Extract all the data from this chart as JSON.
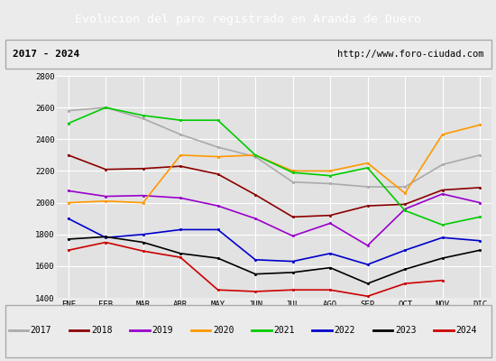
{
  "title": "Evolucion del paro registrado en Aranda de Duero",
  "subtitle_left": "2017 - 2024",
  "subtitle_right": "http://www.foro-ciudad.com",
  "months": [
    "ENE",
    "FEB",
    "MAR",
    "ABR",
    "MAY",
    "JUN",
    "JUL",
    "AGO",
    "SEP",
    "OCT",
    "NOV",
    "DIC"
  ],
  "ylim": [
    1400,
    2800
  ],
  "yticks": [
    1400,
    1600,
    1800,
    2000,
    2200,
    2400,
    2600,
    2800
  ],
  "series": {
    "2017": {
      "color": "#aaaaaa",
      "data": [
        2580,
        2600,
        2530,
        2430,
        2350,
        2290,
        2130,
        2120,
        2100,
        2100,
        2240,
        2300
      ]
    },
    "2018": {
      "color": "#8b0000",
      "data": [
        2300,
        2210,
        2215,
        2230,
        2180,
        2050,
        1910,
        1920,
        1980,
        1990,
        2080,
        2095
      ]
    },
    "2019": {
      "color": "#9900cc",
      "data": [
        2075,
        2040,
        2045,
        2030,
        1980,
        1900,
        1790,
        1870,
        1730,
        1960,
        2055,
        2000
      ]
    },
    "2020": {
      "color": "#ff9900",
      "data": [
        2000,
        2010,
        2000,
        2300,
        2290,
        2300,
        2200,
        2200,
        2250,
        2060,
        2430,
        2490
      ]
    },
    "2021": {
      "color": "#00cc00",
      "data": [
        2500,
        2600,
        2550,
        2520,
        2520,
        2300,
        2190,
        2170,
        2220,
        1950,
        1860,
        1910
      ]
    },
    "2022": {
      "color": "#0000cc",
      "data": [
        1900,
        1780,
        1800,
        1830,
        1830,
        1640,
        1630,
        1680,
        1610,
        1700,
        1780,
        1760
      ]
    },
    "2023": {
      "color": "#000000",
      "data": [
        1770,
        1785,
        1750,
        1680,
        1650,
        1550,
        1560,
        1590,
        1490,
        1580,
        1650,
        1700
      ]
    },
    "2024": {
      "color": "#cc0000",
      "data": [
        1700,
        1750,
        1695,
        1655,
        1450,
        1440,
        1450,
        1450,
        1410,
        1490,
        1510,
        null
      ]
    }
  },
  "background_color": "#ebebeb",
  "plot_background": "#e2e2e2",
  "title_bg": "#4f81bd",
  "title_color": "white",
  "grid_color": "#ffffff",
  "legend_bg": "#ebebeb",
  "subtitle_border": "#aaaaaa"
}
